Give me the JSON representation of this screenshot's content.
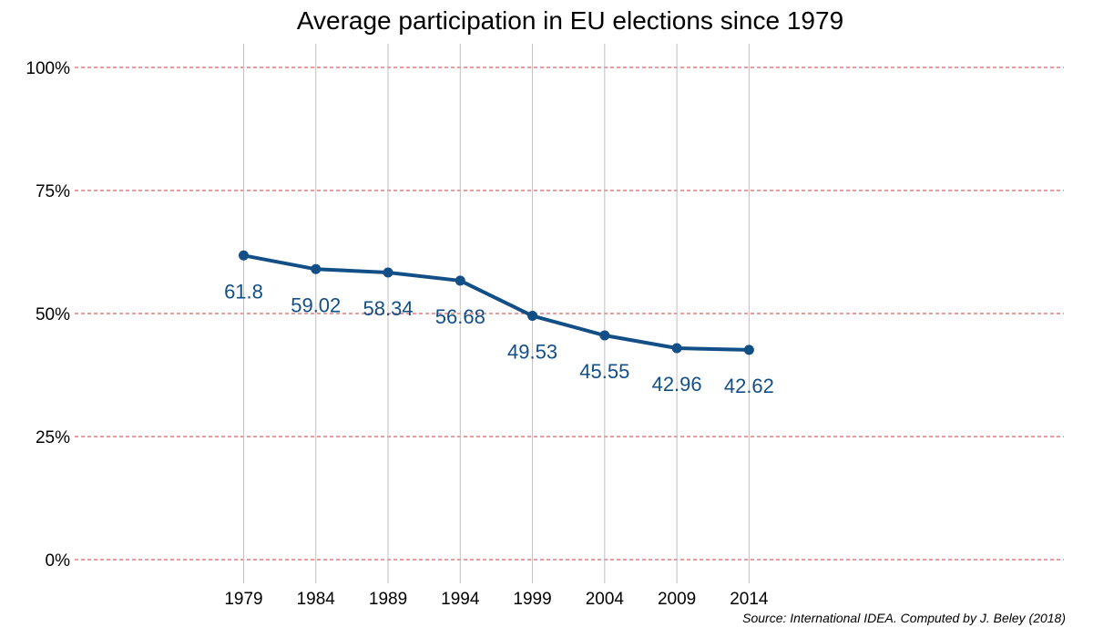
{
  "chart_data": {
    "type": "line",
    "title": "Average participation in EU elections since 1979",
    "xlabel": "",
    "ylabel": "",
    "x": [
      1979,
      1984,
      1989,
      1994,
      1999,
      2004,
      2009,
      2014
    ],
    "x_tick_labels": [
      "1979",
      "1984",
      "1989",
      "1994",
      "1999",
      "2004",
      "2009",
      "2014"
    ],
    "series": [
      {
        "values": [
          61.8,
          59.02,
          58.34,
          56.68,
          49.53,
          45.55,
          42.96,
          42.62
        ],
        "data_labels": [
          "61.8",
          "59.02",
          "58.34",
          "56.68",
          "49.53",
          "45.55",
          "42.96",
          "42.62"
        ]
      }
    ],
    "y_ticks": [
      0,
      25,
      50,
      75,
      100
    ],
    "y_tick_labels": [
      "0%",
      "25%",
      "50%",
      "75%",
      "100%"
    ],
    "ylim": [
      0,
      100
    ],
    "xlim": [
      1967.3,
      2035.8
    ],
    "grid": {
      "horizontal": true,
      "horizontal_style": "dashed",
      "vertical": true
    },
    "legend": "none",
    "source": "Source: International IDEA. Computed by J. Beley (2018)",
    "colors": {
      "line": "#134f87",
      "labels": "#134f87",
      "h_grid": "#d13a3a",
      "v_grid": "#bfbfbf"
    }
  }
}
